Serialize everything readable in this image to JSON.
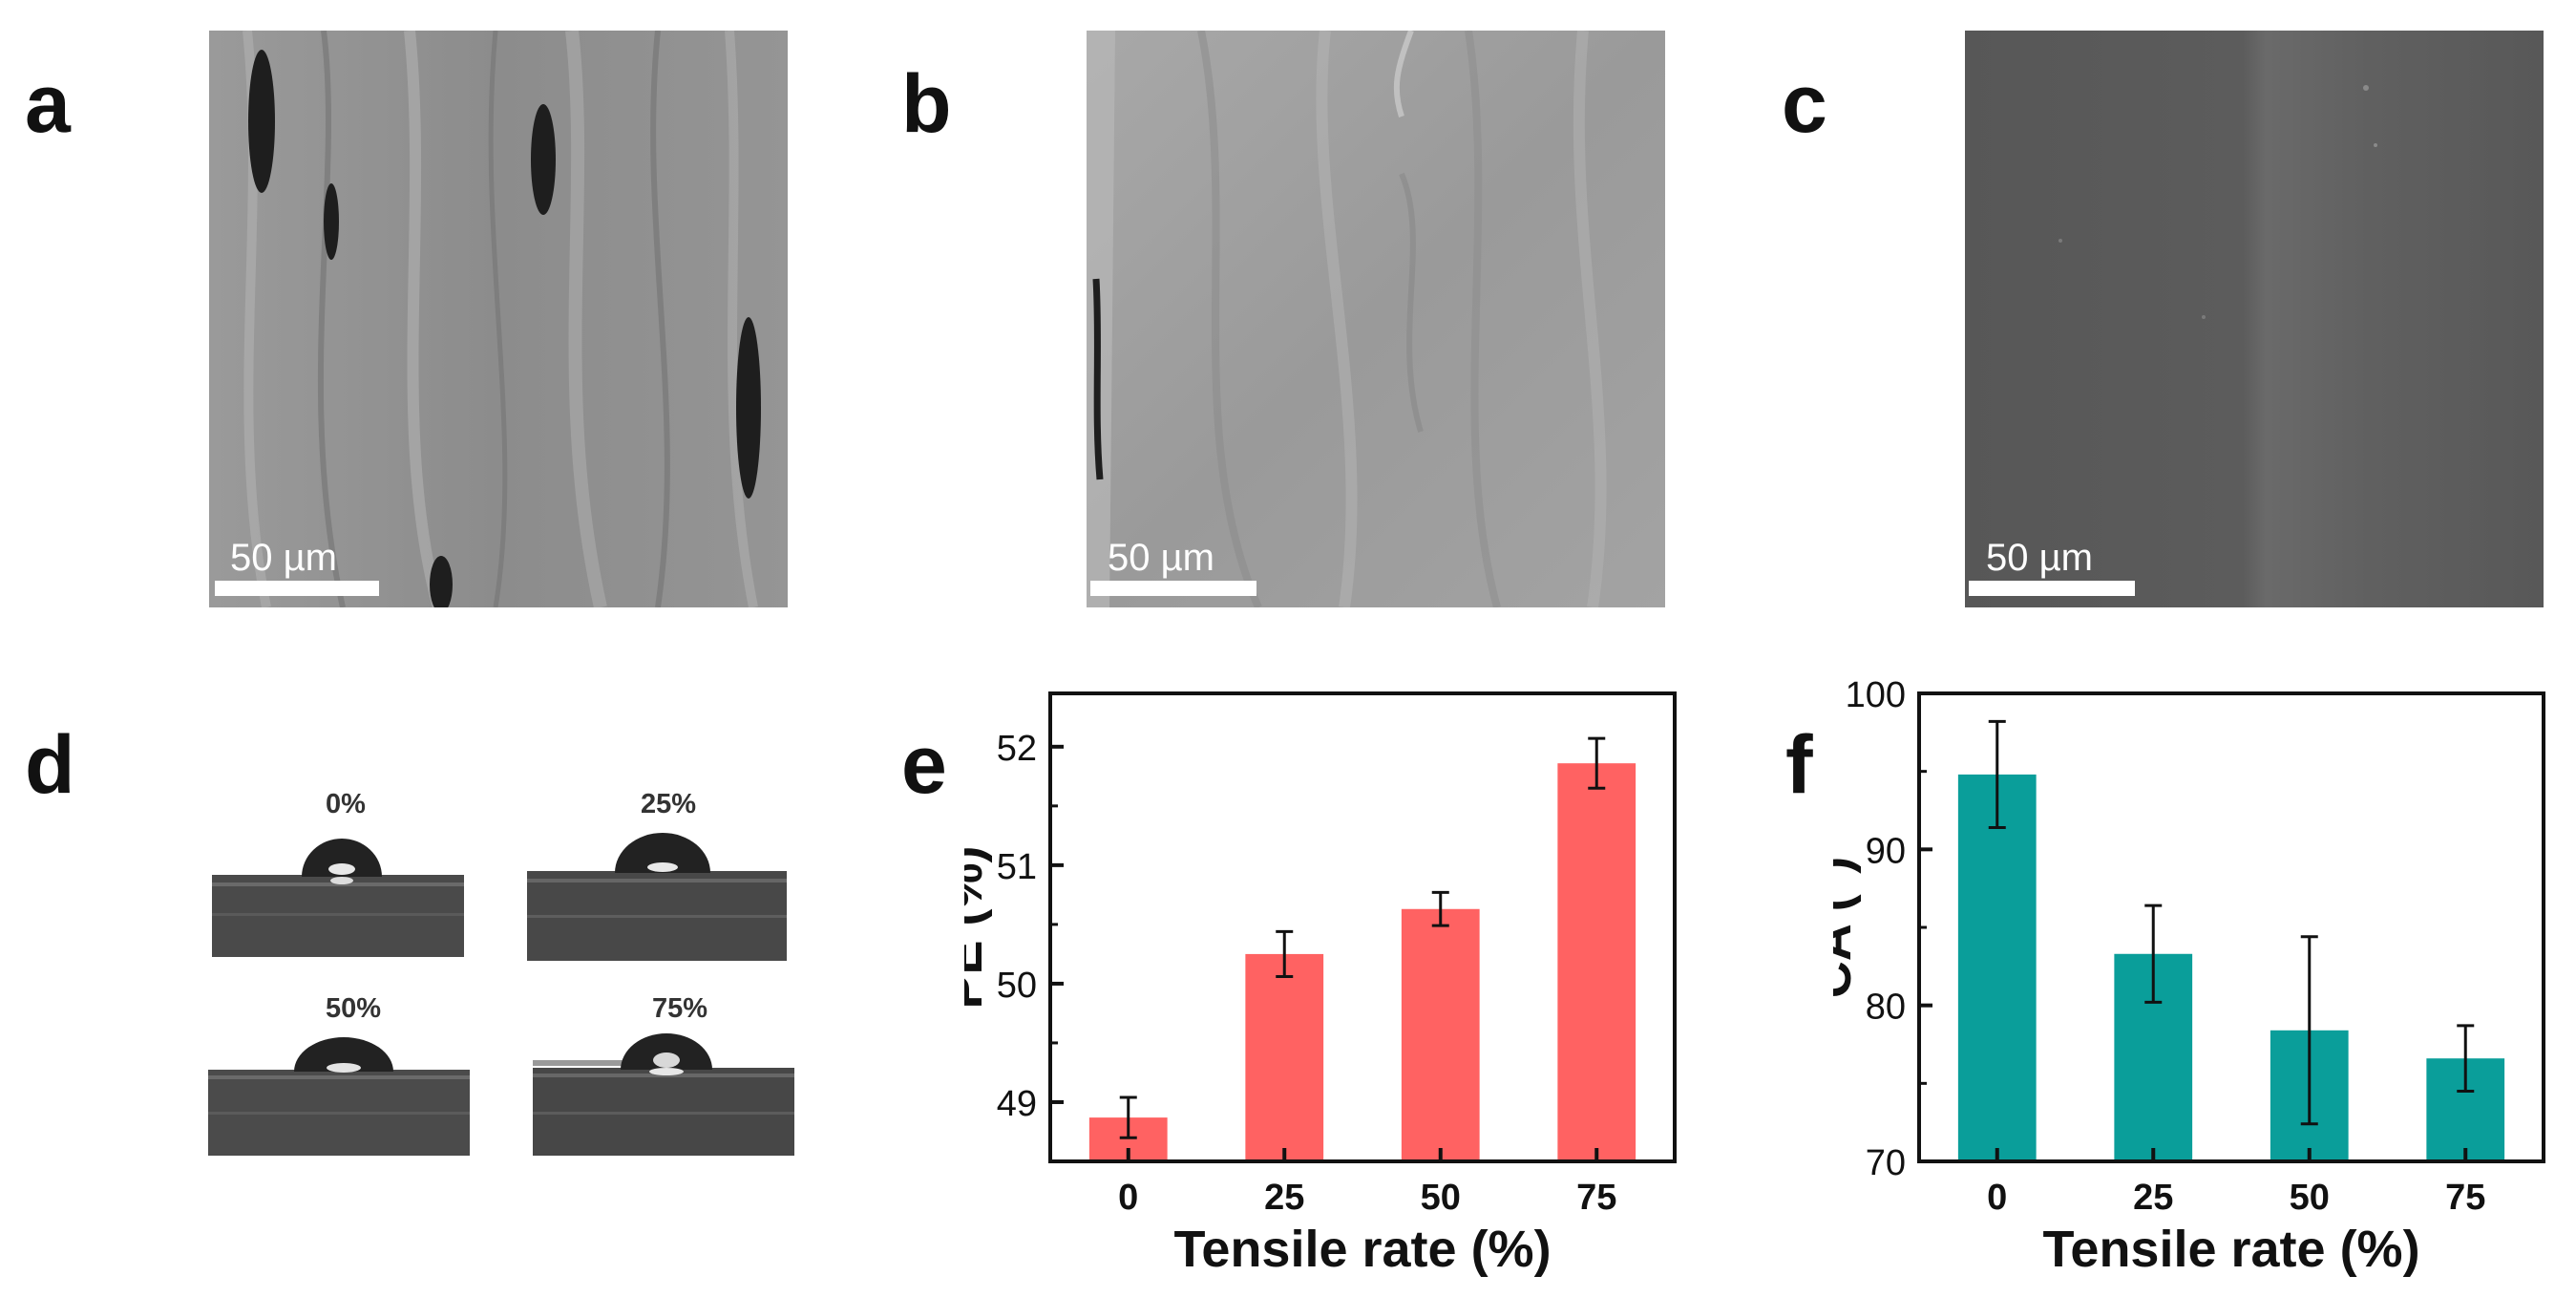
{
  "panels": {
    "a": {
      "letter": "a",
      "scale_text": "50 µm"
    },
    "b": {
      "letter": "b",
      "scale_text": "50 µm"
    },
    "c": {
      "letter": "c",
      "scale_text": "50 µm"
    },
    "d": {
      "letter": "d",
      "labels": [
        "0%",
        "25%",
        "50%",
        "75%"
      ]
    },
    "e": {
      "letter": "e"
    },
    "f": {
      "letter": "f"
    }
  },
  "colors": {
    "bar_e": "#ff6262",
    "bar_f": "#0a9e9a"
  },
  "chart_data": [
    {
      "panel": "e",
      "type": "bar",
      "categories": [
        "0",
        "25",
        "50",
        "75"
      ],
      "values": [
        48.87,
        50.25,
        50.63,
        51.86
      ],
      "errors": [
        0.17,
        0.19,
        0.14,
        0.21
      ],
      "xlabel": "Tensile rate (%)",
      "ylabel": "PE (%)",
      "ylim": [
        48.5,
        52.45
      ],
      "yticks": [
        49,
        50,
        51,
        52
      ],
      "grid": false
    },
    {
      "panel": "f",
      "type": "bar",
      "categories": [
        "0",
        "25",
        "50",
        "75"
      ],
      "values": [
        94.8,
        83.3,
        78.4,
        76.6
      ],
      "errors": [
        3.4,
        3.1,
        6.0,
        2.1
      ],
      "xlabel": "Tensile rate (%)",
      "ylabel": "CA (°)",
      "ylim": [
        70,
        100
      ],
      "yticks": [
        70,
        80,
        90,
        100
      ],
      "grid": false
    }
  ]
}
